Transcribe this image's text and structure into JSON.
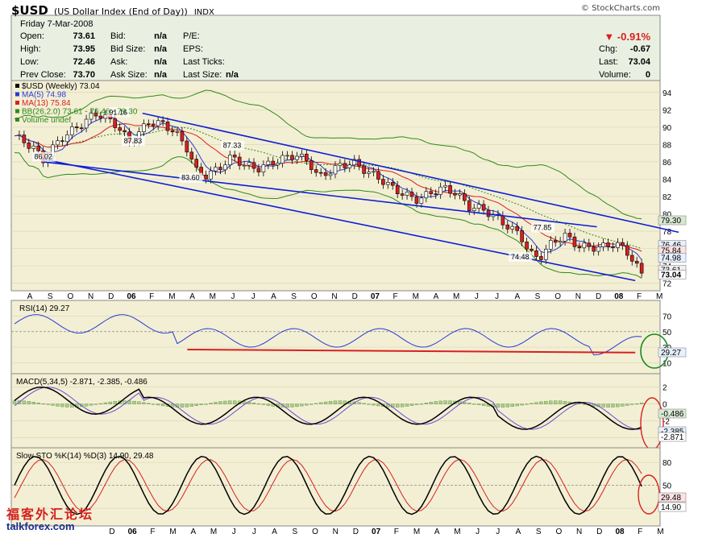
{
  "header": {
    "symbol": "$USD",
    "name": "(US Dollar Index (End of Day))",
    "exchange": "INDX",
    "copyright": "© StockCharts.com",
    "date": "Friday  7-Mar-2008",
    "fields": [
      {
        "label": "Open:",
        "value": "73.61"
      },
      {
        "label": "High:",
        "value": "73.95"
      },
      {
        "label": "Low:",
        "value": "72.46"
      },
      {
        "label": "Prev Close:",
        "value": "73.70"
      }
    ],
    "fields2": [
      {
        "label": "Bid:",
        "value": "n/a"
      },
      {
        "label": "Bid Size:",
        "value": "n/a"
      },
      {
        "label": "Ask:",
        "value": "n/a"
      },
      {
        "label": "Ask Size:",
        "value": "n/a"
      }
    ],
    "fields3": [
      {
        "label": "P/E:",
        "value": ""
      },
      {
        "label": "EPS:",
        "value": ""
      },
      {
        "label": "Last Ticks:",
        "value": ""
      },
      {
        "label": "Last Size:",
        "value": "n/a"
      }
    ],
    "change_pct": "▼ -0.91%",
    "fields4": [
      {
        "label": "Chg:",
        "value": "-0.67"
      },
      {
        "label": "Last:",
        "value": "73.04"
      },
      {
        "label": "Volume:",
        "value": "0"
      }
    ]
  },
  "watermark": {
    "line1": "福客外汇论坛",
    "line2": "talkforex.com"
  },
  "colors": {
    "panel_bg": "#f3efd4",
    "header_bg": "#e9f0e2",
    "up": "#ffffff",
    "down": "#d8201f",
    "ma5": "#2a3bd6",
    "ma13": "#d8201f",
    "bb": "#2f8a1c",
    "channel": "#0d1fd4",
    "annotation": "#1d8a1d",
    "circle": "#d8201f"
  },
  "chart_data": [
    {
      "id": "price",
      "type": "candlestick",
      "legend": [
        "$USD (Weekly) 73.04",
        "MA(5) 74.98",
        "MA(13) 75.84",
        "BB(26,2.0) 73.61 - 76.46 - 79.30",
        "Volume undef"
      ],
      "ylim": [
        71.5,
        95
      ],
      "yticks": [
        72,
        74,
        76,
        78,
        80,
        82,
        84,
        86,
        88,
        90,
        92,
        94
      ],
      "price_labels": [
        {
          "text": "91.16",
          "x": 16.2,
          "y": 91.16
        },
        {
          "text": "87.33",
          "x": 34,
          "y": 87.33
        },
        {
          "text": "87.83",
          "x": 18.5,
          "y": 87.83
        },
        {
          "text": "86.02",
          "x": 4.5,
          "y": 86.02
        },
        {
          "text": "83.60",
          "x": 27.5,
          "y": 83.6
        },
        {
          "text": "77.85",
          "x": 82.5,
          "y": 77.85
        },
        {
          "text": "74.48",
          "x": 79,
          "y": 74.48
        }
      ],
      "axis_tags": [
        {
          "text": "79.30",
          "y": 79.3
        },
        {
          "text": "76.46",
          "y": 76.46
        },
        {
          "text": "75.84",
          "y": 75.84
        },
        {
          "text": "74.98",
          "y": 74.98
        },
        {
          "text": "73.61",
          "y": 73.61
        },
        {
          "text": "73.04",
          "y": 73.04
        }
      ],
      "trendlines": [
        {
          "x1": 20,
          "y1": 91.6,
          "x2": 97.5,
          "y2": 77.5
        },
        {
          "x1": 4.5,
          "y1": 86.3,
          "x2": 97,
          "y2": 72.3
        },
        {
          "x1": 4.5,
          "y1": 86.0,
          "x2": 91,
          "y2": 78.5
        }
      ]
    },
    {
      "id": "rsi",
      "type": "line",
      "legend": "RSI(14) 29.27",
      "ylim": [
        0,
        85
      ],
      "yticks": [
        10,
        30,
        50,
        70
      ],
      "value_tag": "29.27",
      "support_line": {
        "x1": 27,
        "y1": 27,
        "x2": 97,
        "y2": 23
      }
    },
    {
      "id": "macd",
      "type": "line+histogram",
      "legend": [
        "MACD(5,34,5) -2.871, -2.385, -0.486"
      ],
      "ylim": [
        -4.8,
        3.2
      ],
      "yticks": [
        -4,
        -2,
        0,
        2
      ],
      "value_tags": [
        "-0.486",
        "-2.385",
        "-2.871"
      ]
    },
    {
      "id": "sto",
      "type": "line",
      "legend": [
        "Slow STO %K(14) %D(3) 14.90, 29.48"
      ],
      "ylim": [
        0,
        95
      ],
      "yticks": [
        20,
        50,
        80
      ],
      "value_tags": [
        "29.48",
        "14.90"
      ]
    }
  ],
  "x_axis": {
    "labels": [
      "A",
      "S",
      "O",
      "N",
      "D",
      "06",
      "F",
      "M",
      "A",
      "M",
      "J",
      "J",
      "A",
      "S",
      "O",
      "N",
      "D",
      "07",
      "F",
      "M",
      "A",
      "M",
      "J",
      "J",
      "A",
      "S",
      "O",
      "N",
      "D",
      "08",
      "F",
      "M"
    ],
    "bottom_labels": [
      "D",
      "06",
      "F",
      "M",
      "A",
      "M",
      "J",
      "J",
      "A",
      "S",
      "O",
      "N",
      "D",
      "07",
      "F",
      "M",
      "A",
      "M",
      "J",
      "J",
      "A",
      "S",
      "O",
      "N",
      "D",
      "08",
      "F",
      "M"
    ]
  }
}
